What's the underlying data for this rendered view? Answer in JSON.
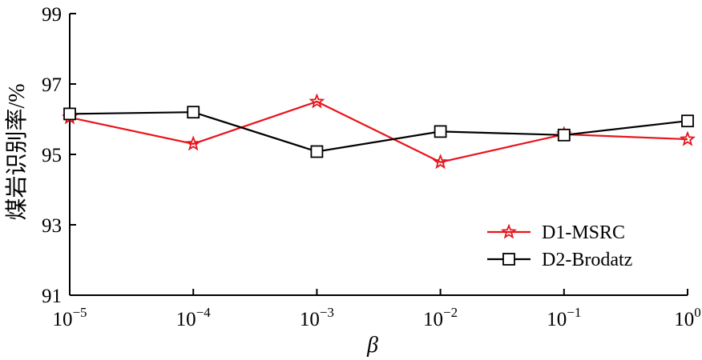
{
  "chart_data": {
    "type": "line",
    "xlabel": "β",
    "ylabel": "煤岩识别率/%",
    "x_ticks": [
      {
        "base": "10",
        "exp": "−5"
      },
      {
        "base": "10",
        "exp": "−4"
      },
      {
        "base": "10",
        "exp": "−3"
      },
      {
        "base": "10",
        "exp": "−2"
      },
      {
        "base": "10",
        "exp": "−1"
      },
      {
        "base": "10",
        "exp": "0"
      }
    ],
    "x": [
      1e-05,
      0.0001,
      0.001,
      0.01,
      0.1,
      1
    ],
    "x_scale": "log",
    "y_ticks": [
      "91",
      "93",
      "95",
      "97",
      "99"
    ],
    "ylim": [
      91,
      99
    ],
    "grid": false,
    "legend_position": "lower-right",
    "series": [
      {
        "name": "D1-MSRC",
        "color": "#e8141c",
        "marker": "star",
        "values": [
          96.05,
          95.3,
          96.5,
          94.78,
          95.57,
          95.43
        ]
      },
      {
        "name": "D2-Brodatz",
        "color": "#000000",
        "marker": "square",
        "values": [
          96.15,
          96.2,
          95.08,
          95.65,
          95.55,
          95.95
        ]
      }
    ]
  }
}
